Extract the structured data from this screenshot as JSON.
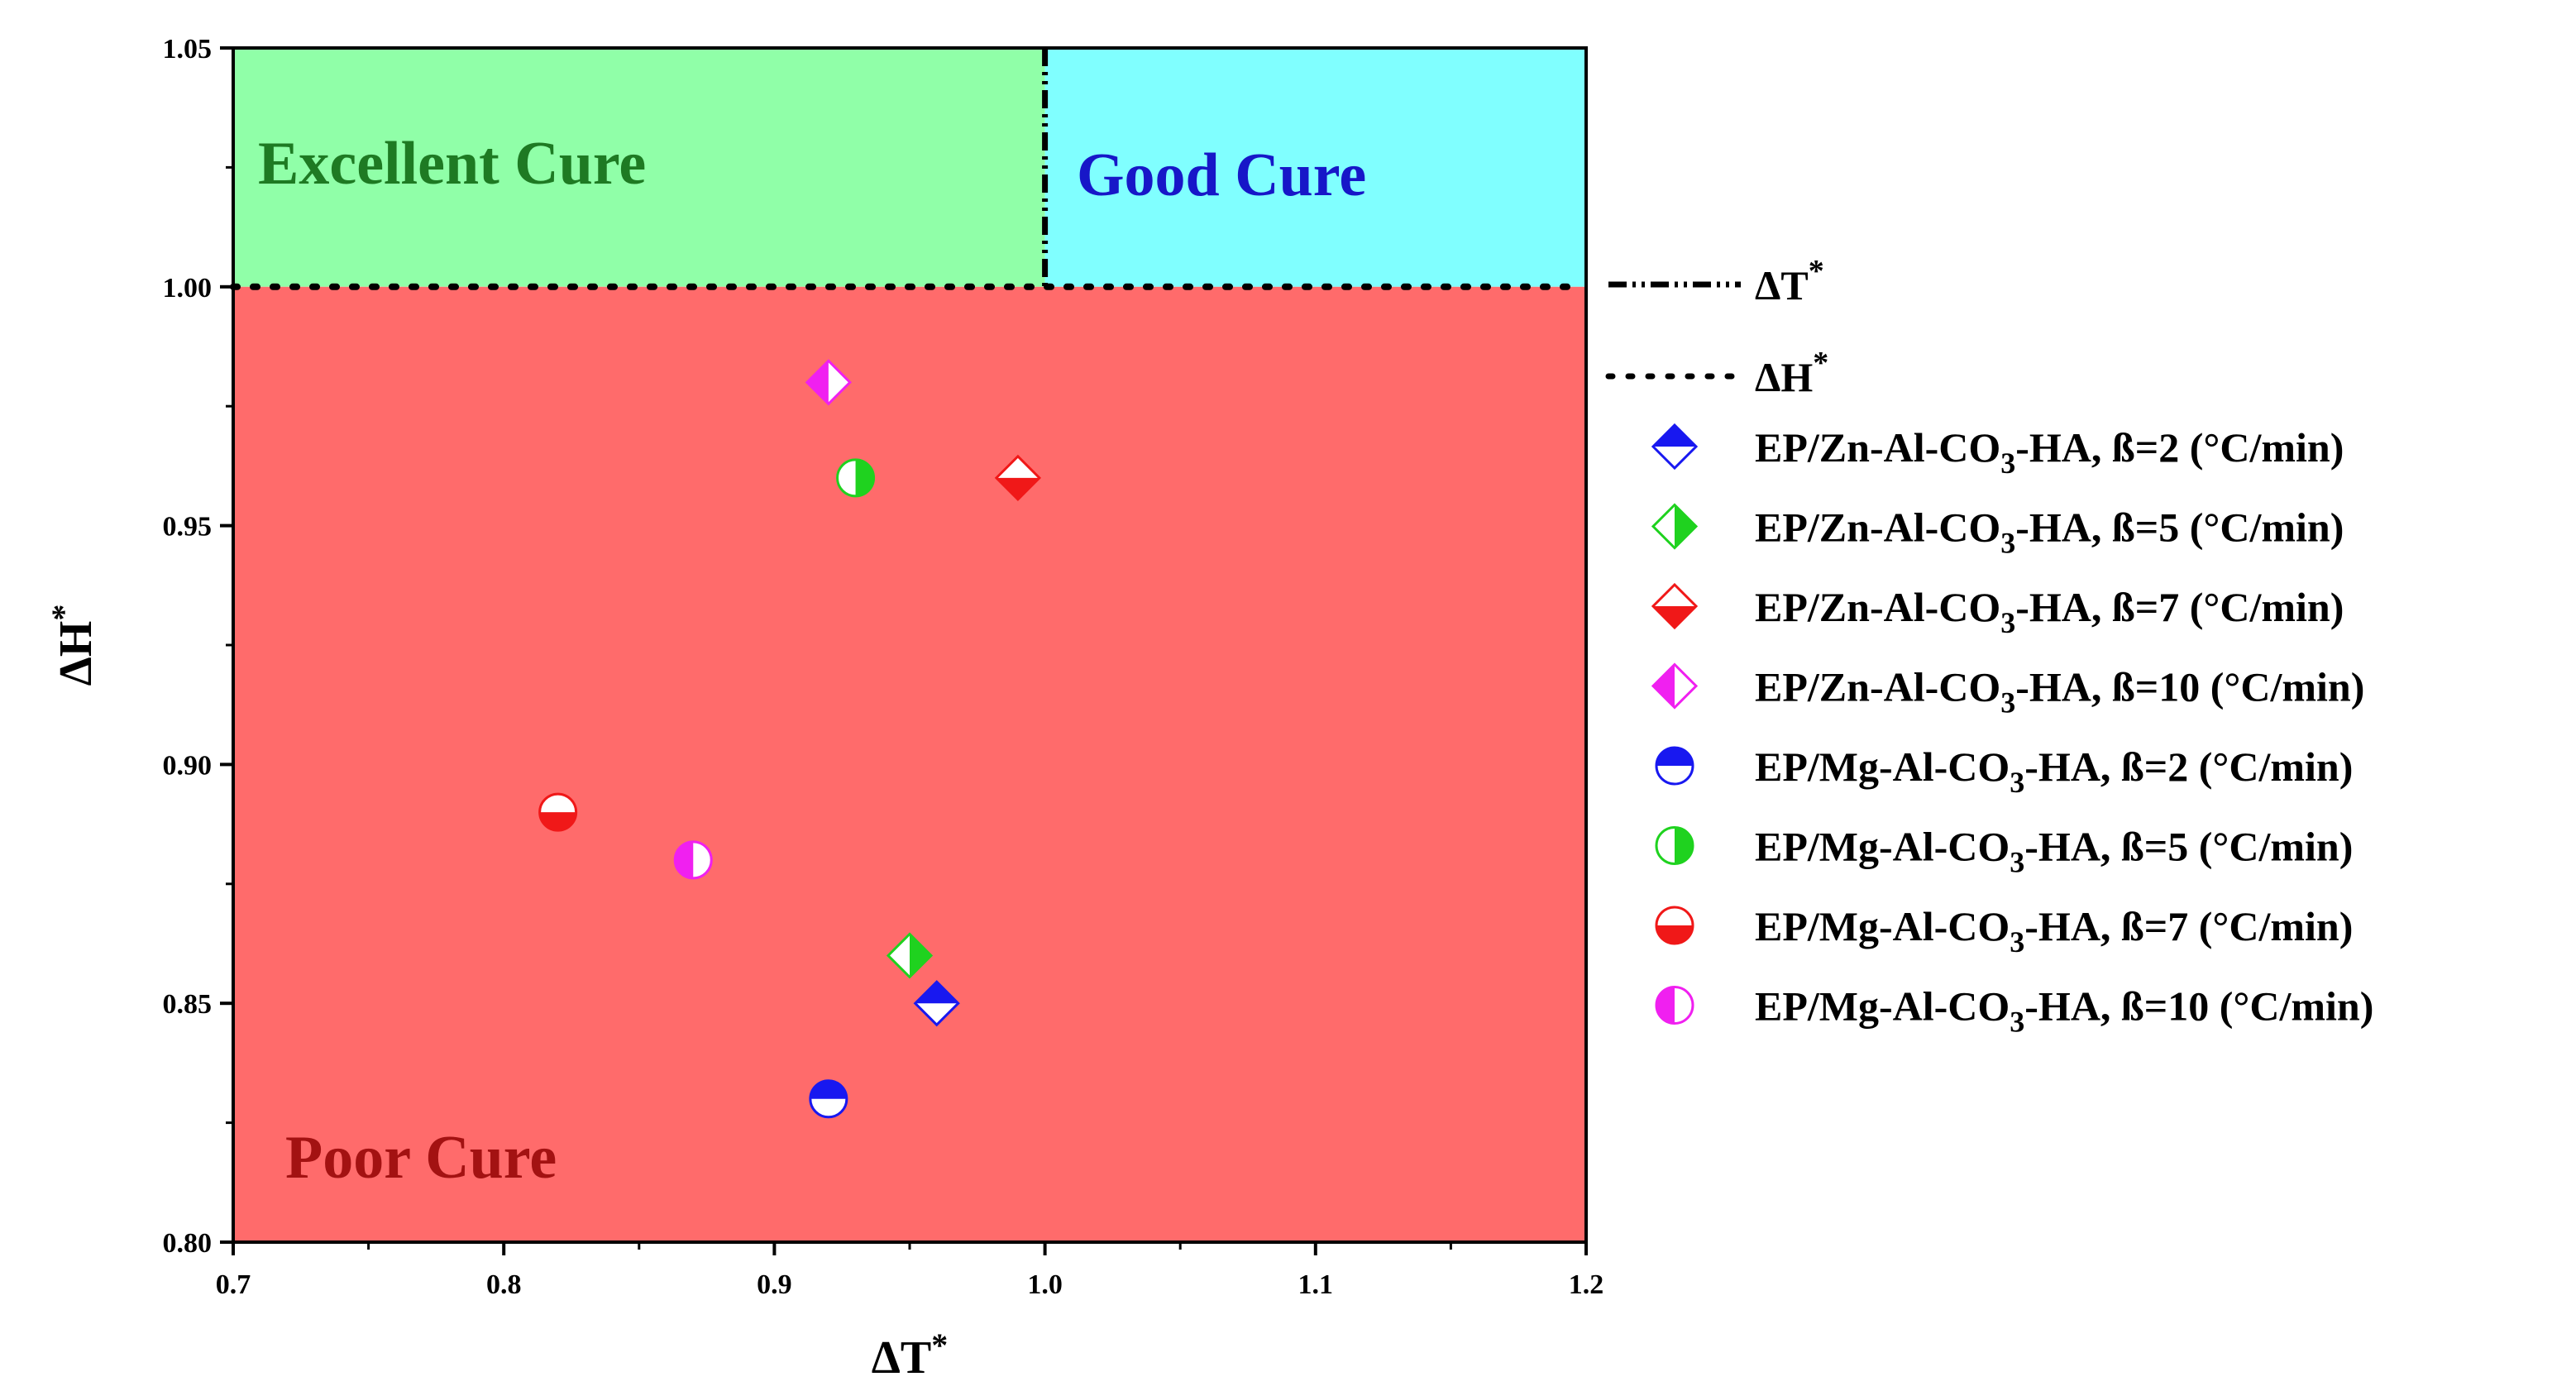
{
  "chart_data": {
    "type": "scatter",
    "xlabel": "ΔT*",
    "ylabel": "ΔH*",
    "xlim": [
      0.7,
      1.2
    ],
    "ylim": [
      0.8,
      1.05
    ],
    "x_ticks": [
      "0.7",
      "0.8",
      "0.9",
      "1.0",
      "1.1",
      "1.2"
    ],
    "y_ticks": [
      "0.80",
      "0.85",
      "0.90",
      "0.95",
      "1.00",
      "1.05"
    ],
    "grid": false,
    "legend_position": "right",
    "regions": [
      {
        "name": "excellent",
        "label": "Excellent Cure",
        "color": "#90FFA8",
        "label_color": "#1E7A23",
        "x": [
          0.7,
          1.0
        ],
        "y": [
          1.0,
          1.05
        ]
      },
      {
        "name": "good",
        "label": "Good Cure",
        "color": "#80FFFF",
        "label_color": "#1717C8",
        "x": [
          1.0,
          1.2
        ],
        "y": [
          1.0,
          1.05
        ]
      },
      {
        "name": "poor",
        "label": "Poor Cure",
        "color": "#FF6B6B",
        "label_color": "#A31212",
        "x": [
          0.7,
          1.2
        ],
        "y": [
          0.8,
          1.0
        ]
      }
    ],
    "reference_lines": [
      {
        "name": "delta-t",
        "label": "ΔT",
        "superscript": "*",
        "orientation": "vertical",
        "value": 1.0,
        "style": "dash-dot-dot"
      },
      {
        "name": "delta-h",
        "label": "ΔH",
        "superscript": "*",
        "orientation": "horizontal",
        "value": 1.0,
        "style": "dotted"
      }
    ],
    "series": [
      {
        "key": "zn2",
        "name": "EP/Zn-Al-CO3-HA, ß=2 (°C/min)",
        "text_pre": "EP/Zn-Al-CO",
        "text_sub": "3",
        "text_post": "-HA, ß=2 (°C/min)",
        "marker": "diamond",
        "fill": "top",
        "color": "#1818F0",
        "x": 0.96,
        "y": 0.85
      },
      {
        "key": "zn5",
        "name": "EP/Zn-Al-CO3-HA, ß=5 (°C/min)",
        "text_pre": "EP/Zn-Al-CO",
        "text_sub": "3",
        "text_post": "-HA, ß=5 (°C/min)",
        "marker": "diamond",
        "fill": "right",
        "color": "#1FD21F",
        "x": 0.95,
        "y": 0.86
      },
      {
        "key": "zn7",
        "name": "EP/Zn-Al-CO3-HA, ß=7 (°C/min)",
        "text_pre": "EP/Zn-Al-CO",
        "text_sub": "3",
        "text_post": "-HA, ß=7 (°C/min)",
        "marker": "diamond",
        "fill": "bottom",
        "color": "#F01818",
        "x": 0.99,
        "y": 0.96
      },
      {
        "key": "zn10",
        "name": "EP/Zn-Al-CO3-HA, ß=10 (°C/min)",
        "text_pre": "EP/Zn-Al-CO",
        "text_sub": "3",
        "text_post": "-HA, ß=10 (°C/min)",
        "marker": "diamond",
        "fill": "left",
        "color": "#F020F0",
        "x": 0.92,
        "y": 0.98
      },
      {
        "key": "mg2",
        "name": "EP/Mg-Al-CO3-HA, ß=2 (°C/min)",
        "text_pre": "EP/Mg-Al-CO",
        "text_sub": "3",
        "text_post": "-HA, ß=2 (°C/min)",
        "marker": "circle",
        "fill": "top",
        "color": "#1818F0",
        "x": 0.92,
        "y": 0.83
      },
      {
        "key": "mg5",
        "name": "EP/Mg-Al-CO3-HA, ß=5 (°C/min)",
        "text_pre": "EP/Mg-Al-CO",
        "text_sub": "3",
        "text_post": "-HA, ß=5 (°C/min)",
        "marker": "circle",
        "fill": "right",
        "color": "#1FD21F",
        "x": 0.93,
        "y": 0.96
      },
      {
        "key": "mg7",
        "name": "EP/Mg-Al-CO3-HA, ß=7 (°C/min)",
        "text_pre": "EP/Mg-Al-CO",
        "text_sub": "3",
        "text_post": "-HA, ß=7 (°C/min)",
        "marker": "circle",
        "fill": "bottom",
        "color": "#F01818",
        "x": 0.82,
        "y": 0.89
      },
      {
        "key": "mg10",
        "name": "EP/Mg-Al-CO3-HA, ß=10 (°C/min)",
        "text_pre": "EP/Mg-Al-CO",
        "text_sub": "3",
        "text_post": "-HA, ß=10 (°C/min)",
        "marker": "circle",
        "fill": "left",
        "color": "#F020F0",
        "x": 0.87,
        "y": 0.88
      }
    ]
  }
}
